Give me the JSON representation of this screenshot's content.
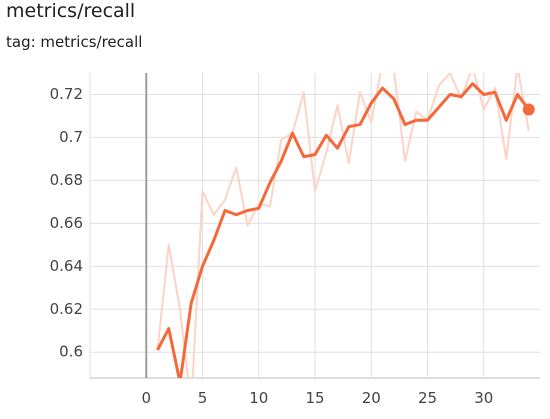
{
  "chart_data": {
    "type": "line",
    "title": "metrics/recall",
    "subtitle": "tag: metrics/recall",
    "x": [
      1,
      2,
      3,
      4,
      5,
      6,
      7,
      8,
      9,
      10,
      11,
      12,
      13,
      14,
      15,
      16,
      17,
      18,
      19,
      20,
      21,
      22,
      23,
      24,
      25,
      26,
      27,
      28,
      29,
      30,
      31,
      32,
      33,
      34
    ],
    "series": [
      {
        "color": "#fcd3c6",
        "values": [
          0.601,
          0.65,
          0.62,
          0.575,
          0.675,
          0.664,
          0.671,
          0.686,
          0.659,
          0.669,
          0.668,
          0.699,
          0.702,
          0.721,
          0.675,
          0.693,
          0.715,
          0.688,
          0.721,
          0.707,
          0.735,
          0.732,
          0.689,
          0.712,
          0.708,
          0.724,
          0.73,
          0.718,
          0.733,
          0.713,
          0.723,
          0.69,
          0.733,
          0.703
        ]
      },
      {
        "color": "#f4683a",
        "values": [
          0.601,
          0.611,
          0.586,
          0.623,
          0.64,
          0.652,
          0.666,
          0.664,
          0.666,
          0.667,
          0.679,
          0.689,
          0.702,
          0.691,
          0.692,
          0.701,
          0.695,
          0.705,
          0.706,
          0.716,
          0.723,
          0.718,
          0.706,
          0.708,
          0.708,
          0.714,
          0.72,
          0.719,
          0.725,
          0.72,
          0.721,
          0.708,
          0.72,
          0.713
        ]
      }
    ],
    "xlim": [
      -5,
      35
    ],
    "ylim": [
      0.588,
      0.73
    ],
    "xticks": [
      0,
      5,
      10,
      15,
      20,
      25,
      30
    ],
    "yticks": [
      0.6,
      0.62,
      0.64,
      0.66,
      0.68,
      0.7,
      0.72
    ],
    "grid": true
  }
}
